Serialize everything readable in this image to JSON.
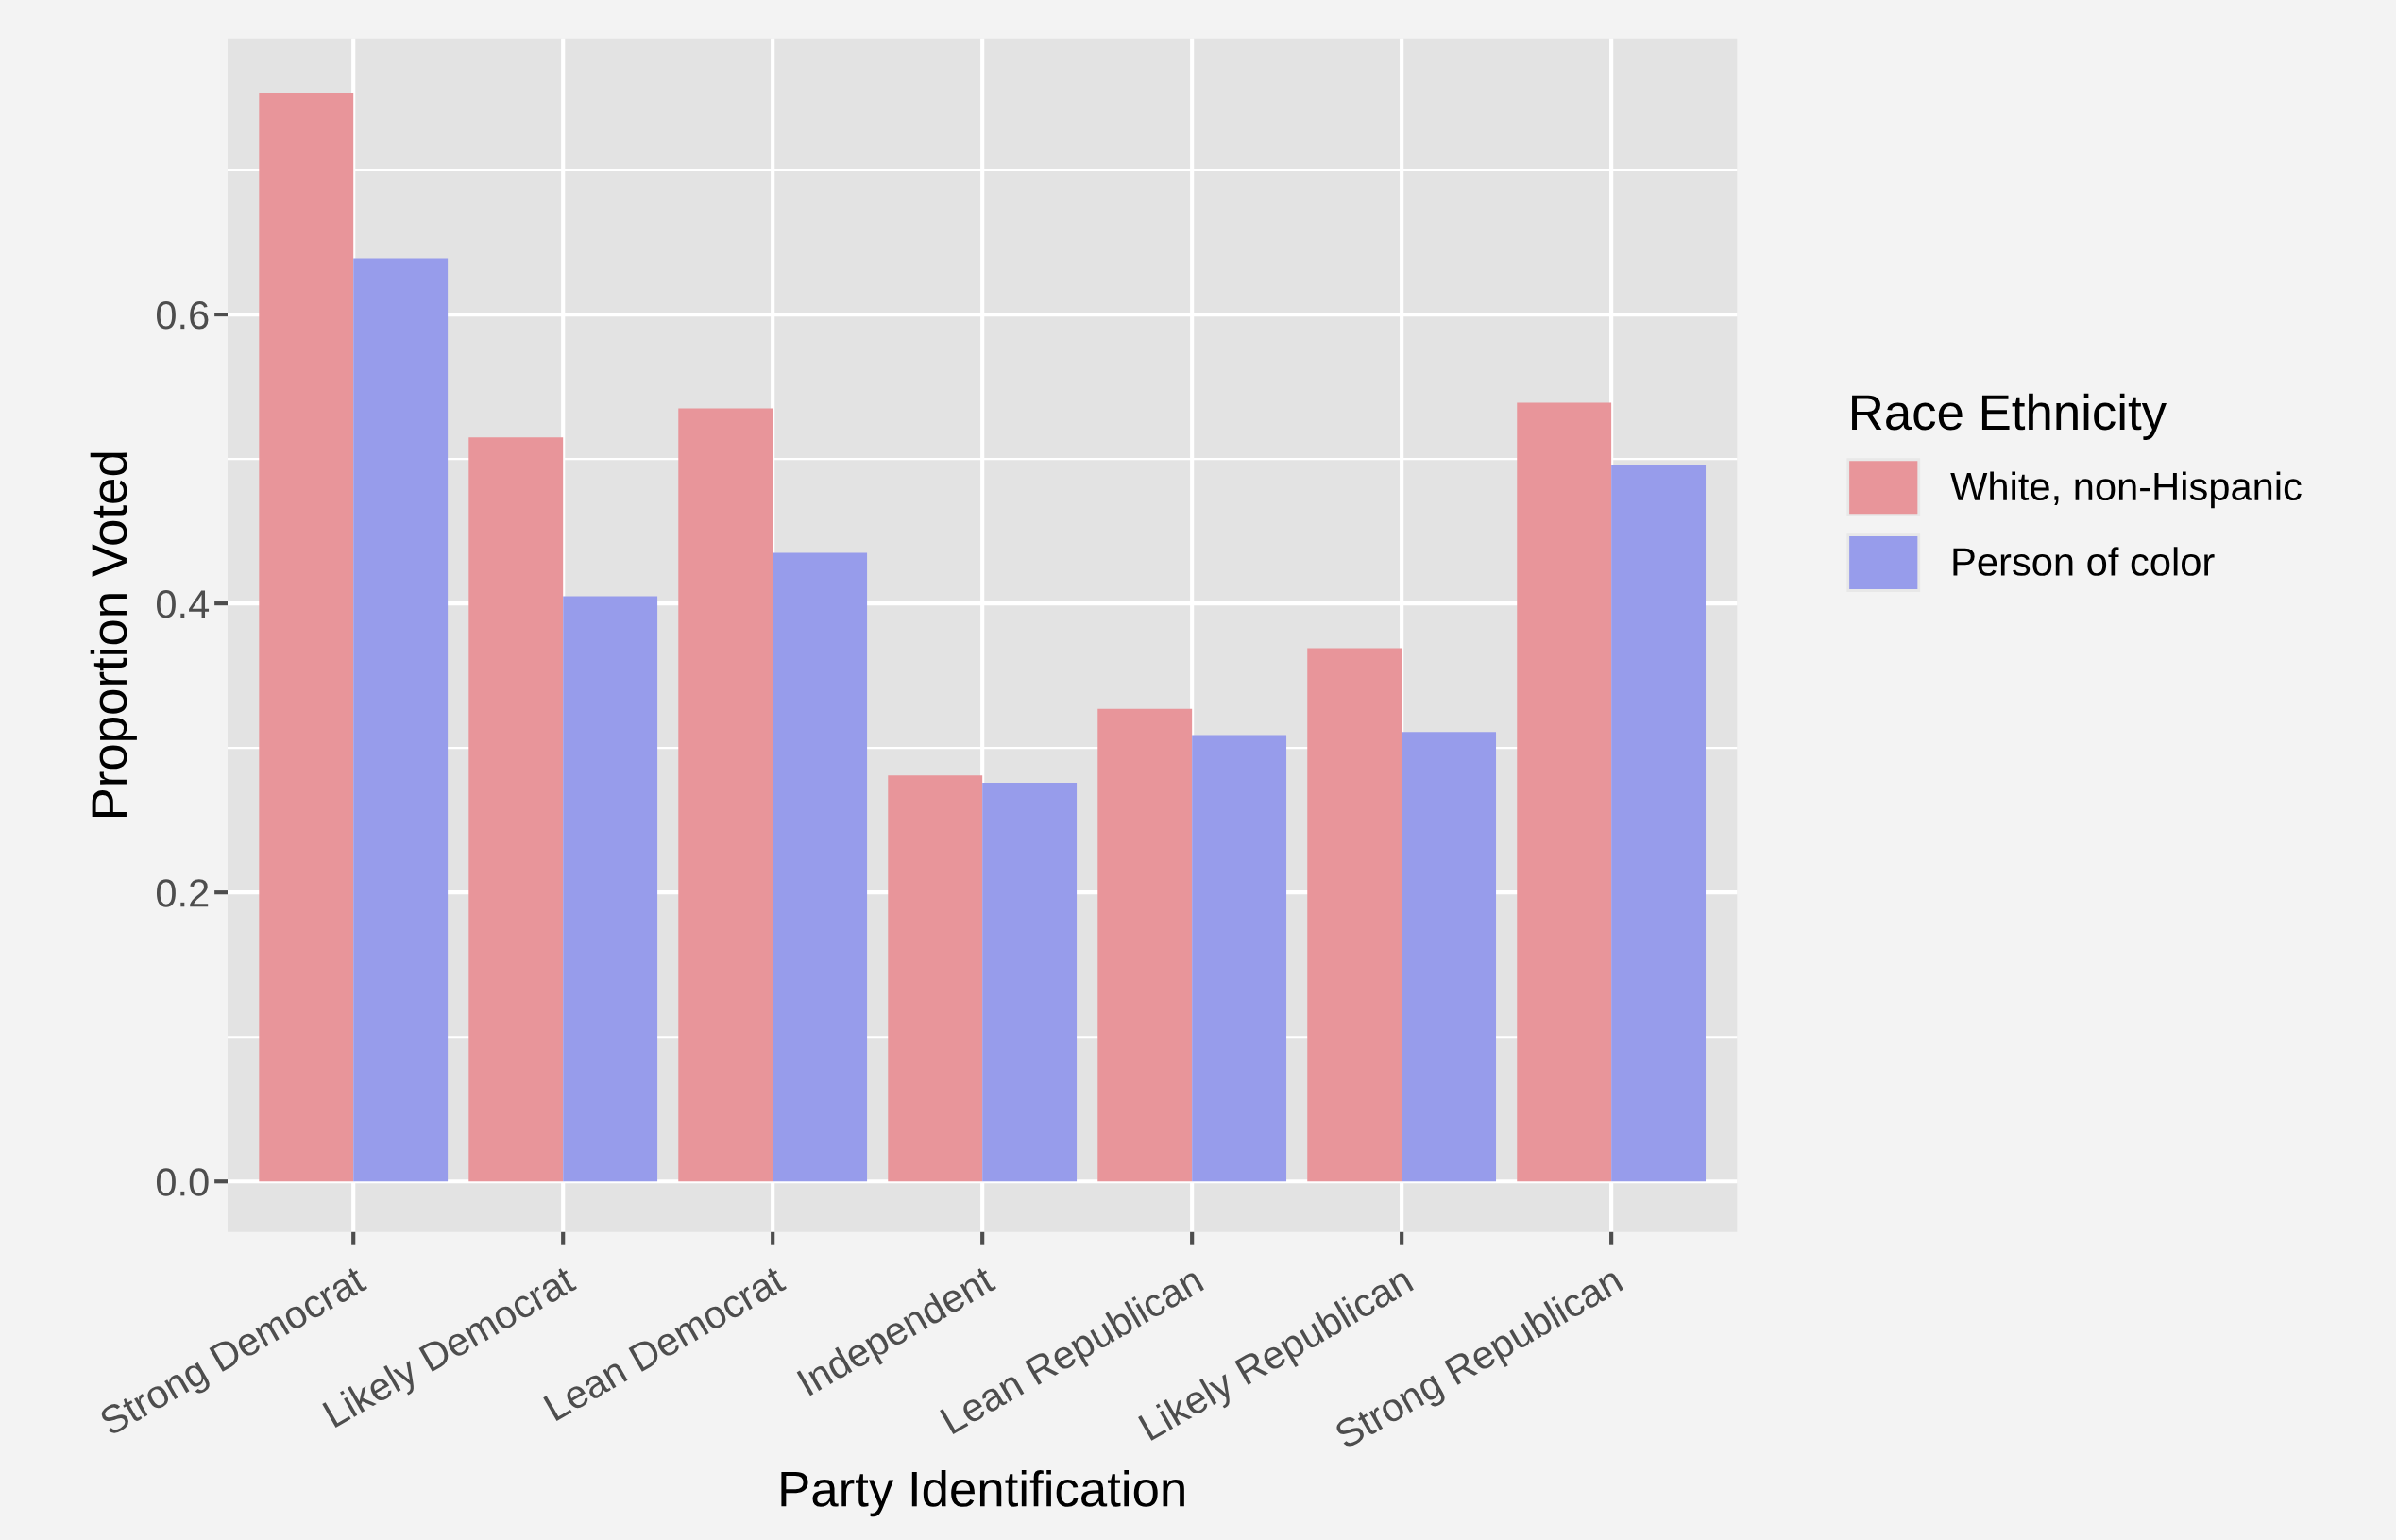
{
  "chart_data": {
    "type": "bar",
    "xlabel": "Party Identification",
    "ylabel": "Proportion Voted",
    "legend_title": "Race Ethnicity",
    "categories": [
      "Strong Democrat",
      "Likely Democrat",
      "Lean Democrat",
      "Independent",
      "Lean Republican",
      "Likely Republican",
      "Strong Republican"
    ],
    "series": [
      {
        "name": "White, non-Hispanic",
        "color": "#e8959a",
        "values": [
          0.753,
          0.515,
          0.535,
          0.281,
          0.327,
          0.369,
          0.539
        ]
      },
      {
        "name": "Person of color",
        "color": "#979ceb",
        "values": [
          0.639,
          0.405,
          0.435,
          0.276,
          0.309,
          0.311,
          0.496
        ]
      }
    ],
    "ylim": [
      -0.035,
      0.791
    ],
    "yticks": [
      {
        "value": 0,
        "label": "0.0"
      },
      0.2,
      0.4,
      0.6
    ],
    "grid": true,
    "legend": "right"
  }
}
